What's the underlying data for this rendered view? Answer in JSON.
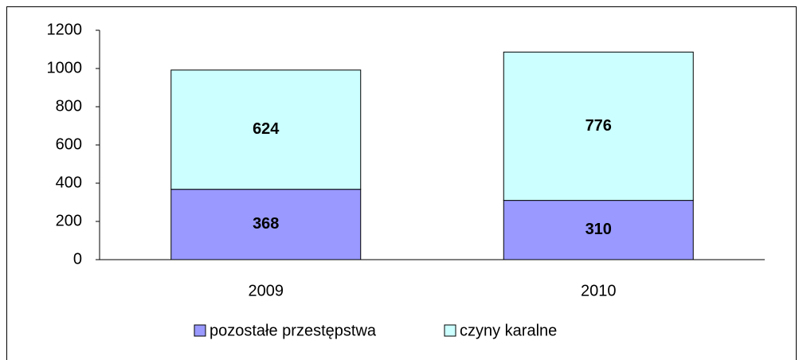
{
  "chart_data": {
    "type": "bar",
    "stacked": true,
    "categories": [
      "2009",
      "2010"
    ],
    "series": [
      {
        "name": "pozostałe przestępstwa",
        "color": "#9999ff",
        "values": [
          368,
          310
        ]
      },
      {
        "name": "czyny karalne",
        "color": "#ccffff",
        "values": [
          624,
          776
        ]
      }
    ],
    "ylim": [
      0,
      1200
    ],
    "yticks": [
      0,
      200,
      400,
      600,
      800,
      1000,
      1200
    ],
    "grid": false,
    "legend": "bottom"
  }
}
